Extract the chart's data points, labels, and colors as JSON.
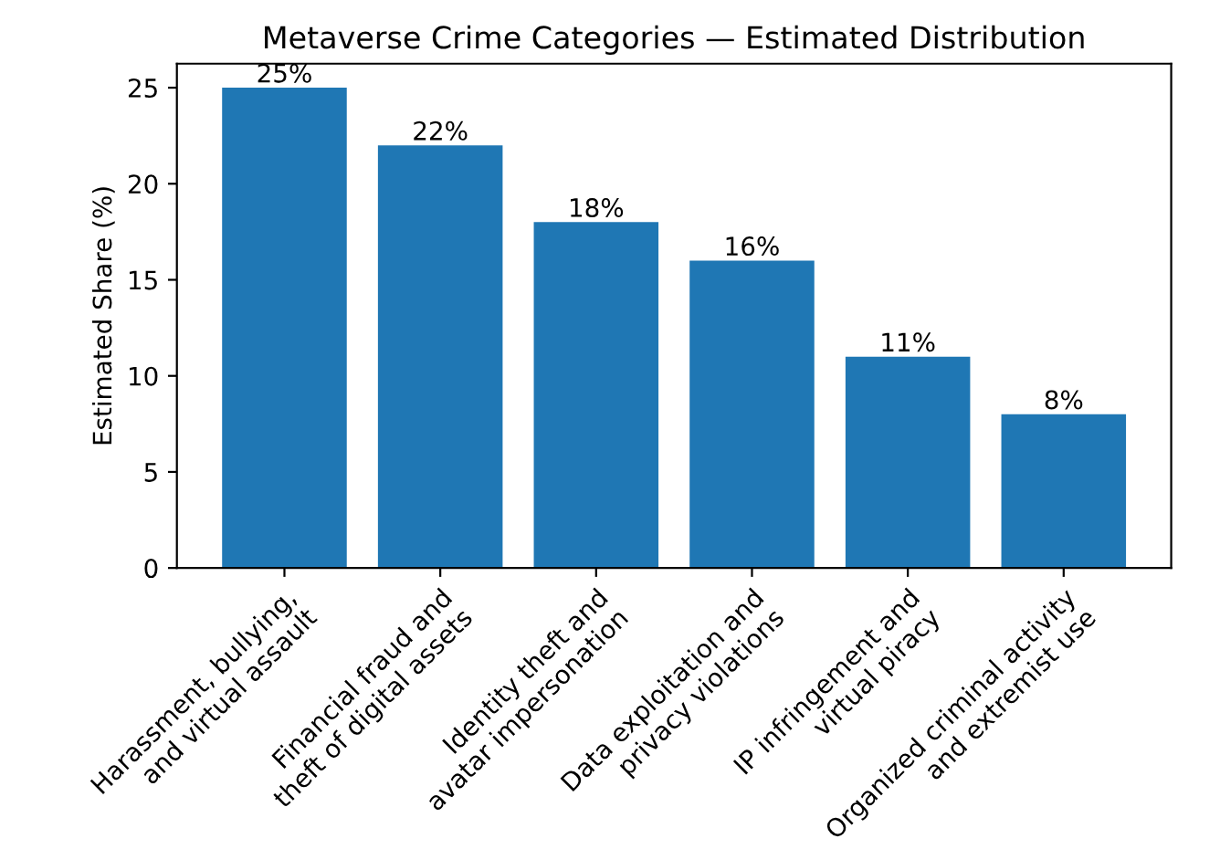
{
  "chart_data": {
    "type": "bar",
    "title": "Metaverse Crime Categories — Estimated Distribution",
    "ylabel": "Estimated Share (%)",
    "categories": [
      "Harassment, bullying,\nand virtual assault",
      "Financial fraud and\ntheft of digital assets",
      "Identity theft and\navatar impersonation",
      "Data exploitation and\nprivacy violations",
      "IP infringement and\nvirtual piracy",
      "Organized criminal activity\nand extremist use"
    ],
    "values": [
      25,
      22,
      18,
      16,
      11,
      8
    ],
    "value_labels": [
      "25%",
      "22%",
      "18%",
      "16%",
      "11%",
      "8%"
    ],
    "color": "#1f77b4",
    "ylim": [
      0,
      26.25
    ],
    "yticks": [
      0,
      5,
      10,
      15,
      20,
      25
    ],
    "grid": false,
    "legend": false
  }
}
